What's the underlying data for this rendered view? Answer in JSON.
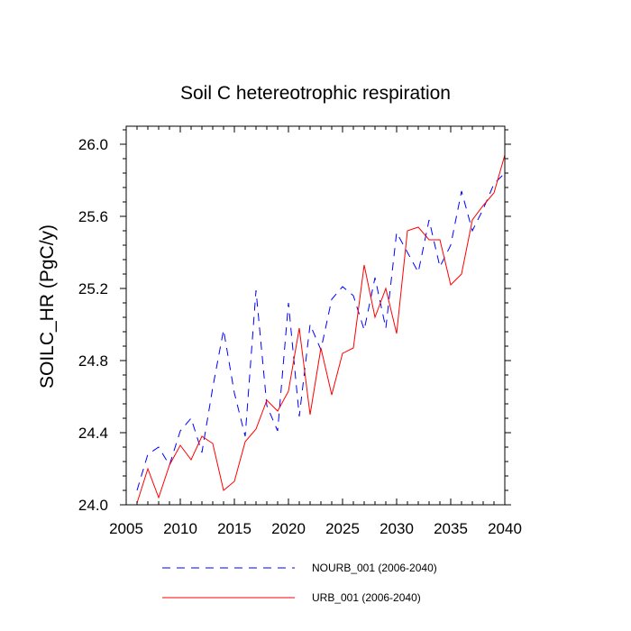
{
  "chart_data": {
    "type": "line",
    "title": "Soil C hetereotrophic respiration",
    "xlabel": "",
    "ylabel": "SOILC_HR  (PgC/y)",
    "xlim": [
      2005,
      2040
    ],
    "ylim": [
      24.0,
      26.1
    ],
    "x_ticks": [
      2005,
      2010,
      2015,
      2020,
      2025,
      2030,
      2035,
      2040
    ],
    "x_tick_labels": [
      "2005",
      "2010",
      "2015",
      "2020",
      "2025",
      "2030",
      "2035",
      "2040"
    ],
    "y_ticks": [
      24.0,
      24.4,
      24.8,
      25.2,
      25.6,
      26.0
    ],
    "y_tick_labels": [
      "24.0",
      "24.4",
      "24.8",
      "25.2",
      "25.6",
      "26.0"
    ],
    "legend_position": "bottom",
    "x": [
      2006,
      2007,
      2008,
      2009,
      2010,
      2011,
      2012,
      2013,
      2014,
      2015,
      2016,
      2017,
      2018,
      2019,
      2020,
      2021,
      2022,
      2023,
      2024,
      2025,
      2026,
      2027,
      2028,
      2029,
      2030,
      2031,
      2032,
      2033,
      2034,
      2035,
      2036,
      2037,
      2038,
      2039,
      2040
    ],
    "series": [
      {
        "name": "NOURB_001 (2006-2040)",
        "color": "#0000ff",
        "style": "dashed",
        "values": [
          24.08,
          24.28,
          24.32,
          24.22,
          24.41,
          24.48,
          24.29,
          24.65,
          24.97,
          24.62,
          24.38,
          25.19,
          24.55,
          24.41,
          25.12,
          24.49,
          25.0,
          24.86,
          25.14,
          25.21,
          25.16,
          24.97,
          25.26,
          24.98,
          25.51,
          25.4,
          25.29,
          25.58,
          25.32,
          25.44,
          25.74,
          25.52,
          25.64,
          25.78,
          25.84
        ]
      },
      {
        "name": "URB_001 (2006-2040)",
        "color": "#ff0000",
        "style": "solid",
        "values": [
          24.01,
          24.2,
          24.04,
          24.22,
          24.33,
          24.25,
          24.38,
          24.34,
          24.08,
          24.13,
          24.35,
          24.42,
          24.58,
          24.52,
          24.63,
          24.98,
          24.5,
          24.87,
          24.61,
          24.84,
          24.87,
          25.33,
          25.04,
          25.2,
          24.95,
          25.52,
          25.54,
          25.47,
          25.47,
          25.22,
          25.28,
          25.58,
          25.66,
          25.73,
          25.94
        ]
      }
    ]
  }
}
